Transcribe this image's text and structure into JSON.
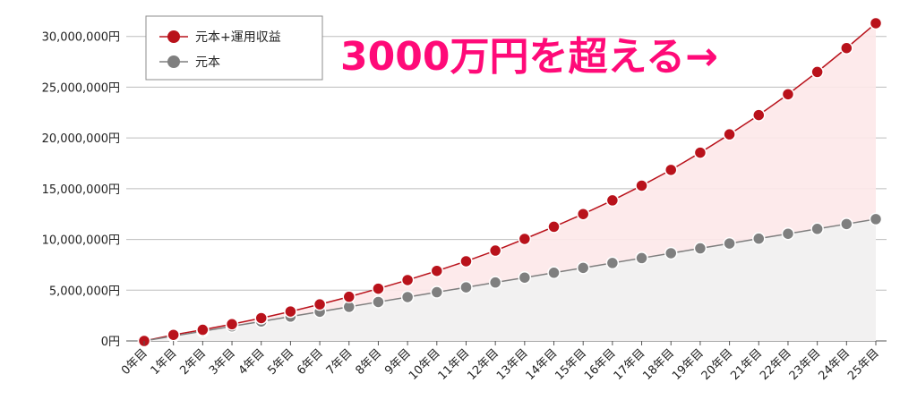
{
  "chart_data": {
    "type": "line",
    "categories": [
      "0年目",
      "1年目",
      "2年目",
      "3年目",
      "4年目",
      "5年目",
      "6年目",
      "7年目",
      "8年目",
      "9年目",
      "10年目",
      "11年目",
      "12年目",
      "13年目",
      "14年目",
      "15年目",
      "16年目",
      "17年目",
      "18年目",
      "19年目",
      "20年目",
      "21年目",
      "22年目",
      "23年目",
      "24年目",
      "25年目"
    ],
    "series": [
      {
        "name": "元本+運用収益",
        "color": "#b9121b",
        "fill": "#fde8e9",
        "values": [
          0,
          600000,
          1100000,
          1650000,
          2250000,
          2900000,
          3600000,
          4350000,
          5150000,
          6000000,
          6900000,
          7850000,
          8900000,
          10050000,
          11250000,
          12500000,
          13850000,
          15300000,
          16850000,
          18550000,
          20350000,
          22250000,
          24300000,
          26500000,
          28850000,
          31300000
        ]
      },
      {
        "name": "元本",
        "color": "#7f7f7f",
        "fill": "#f1f1f1",
        "values": [
          0,
          480000,
          960000,
          1440000,
          1920000,
          2400000,
          2880000,
          3360000,
          3840000,
          4320000,
          4800000,
          5280000,
          5760000,
          6240000,
          6720000,
          7200000,
          7680000,
          8160000,
          8640000,
          9120000,
          9600000,
          10080000,
          10560000,
          11040000,
          11520000,
          12000000
        ]
      }
    ],
    "y_ticks": [
      "0円",
      "5,000,000円",
      "10,000,000円",
      "15,000,000円",
      "20,000,000円",
      "25,000,000円",
      "30,000,000円"
    ],
    "ylim": [
      0,
      32000000
    ],
    "grid": true,
    "legend": "top-left",
    "annotation": {
      "text": "3000万円を超える→",
      "color": "#ff0a78"
    }
  }
}
